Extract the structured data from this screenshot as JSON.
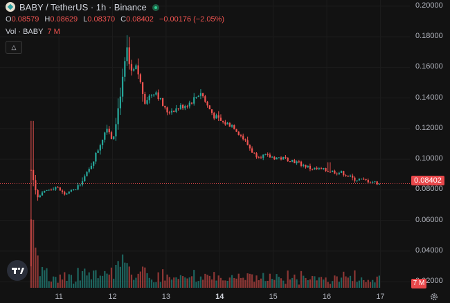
{
  "header": {
    "symbol_line": "BABY / TetherUS · 1h · Binance"
  },
  "ohlc": {
    "o_label": "O",
    "o_value": "0.08579",
    "h_label": "H",
    "h_value": "0.08629",
    "l_label": "L",
    "l_value": "0.08370",
    "c_label": "C",
    "c_value": "0.08402",
    "change": "−0.00176 (−2.05%)"
  },
  "volume_legend": {
    "label": "Vol · BABY",
    "value": "7 M"
  },
  "colors": {
    "up": "#26a69a",
    "down": "#ef5350",
    "background": "#121212",
    "tag": "#e8484b"
  },
  "icons": {
    "collapse": "chevron-up-icon",
    "logo": "baby-token-icon",
    "status": "market-open-icon",
    "brand": "tradingview-logo-icon",
    "settings": "gear-icon"
  },
  "last_price_tag": "0.08402",
  "volume_tag": "7 M",
  "chart_data": {
    "type": "candlestick",
    "y_axis": {
      "range": [
        0.016,
        0.204
      ],
      "ticks": [
        "0.20000",
        "0.18000",
        "0.16000",
        "0.14000",
        "0.12000",
        "0.10000",
        "0.08000",
        "0.06000",
        "0.04000",
        "0.02000"
      ],
      "tick_values": [
        0.2,
        0.18,
        0.16,
        0.14,
        0.12,
        0.1,
        0.08,
        0.06,
        0.04,
        0.02
      ]
    },
    "x_axis": {
      "ticks": [
        "11",
        "12",
        "13",
        "14",
        "15",
        "16",
        "17"
      ],
      "tick_days": [
        11,
        12,
        13,
        14,
        15,
        16,
        17
      ],
      "bold": [
        "14"
      ],
      "range_days": [
        9.9,
        17.55
      ]
    },
    "last_price": 0.08402,
    "price_path_days": [
      10.48,
      10.53,
      10.6,
      10.8,
      10.95,
      11.1,
      11.3,
      11.55,
      11.75,
      11.9,
      12.0,
      12.1,
      12.18,
      12.27,
      12.34,
      12.45,
      12.6,
      12.8,
      13.0,
      13.2,
      13.45,
      13.65,
      13.75,
      13.9,
      14.05,
      14.25,
      14.45,
      14.65,
      14.85,
      15.05,
      15.3,
      15.5,
      15.7,
      15.9,
      16.1,
      16.3,
      16.5,
      16.75,
      17.0
    ],
    "price_path_values": [
      0.093,
      0.085,
      0.075,
      0.08,
      0.082,
      0.077,
      0.08,
      0.092,
      0.108,
      0.122,
      0.112,
      0.132,
      0.15,
      0.172,
      0.155,
      0.16,
      0.138,
      0.145,
      0.131,
      0.133,
      0.137,
      0.144,
      0.136,
      0.128,
      0.124,
      0.122,
      0.113,
      0.103,
      0.102,
      0.101,
      0.1,
      0.097,
      0.094,
      0.093,
      0.092,
      0.091,
      0.087,
      0.086,
      0.084
    ],
    "series": [
      {
        "name": "BABY / TetherUS",
        "kind": "candles"
      },
      {
        "name": "Vol · BABY",
        "kind": "volume"
      }
    ]
  }
}
